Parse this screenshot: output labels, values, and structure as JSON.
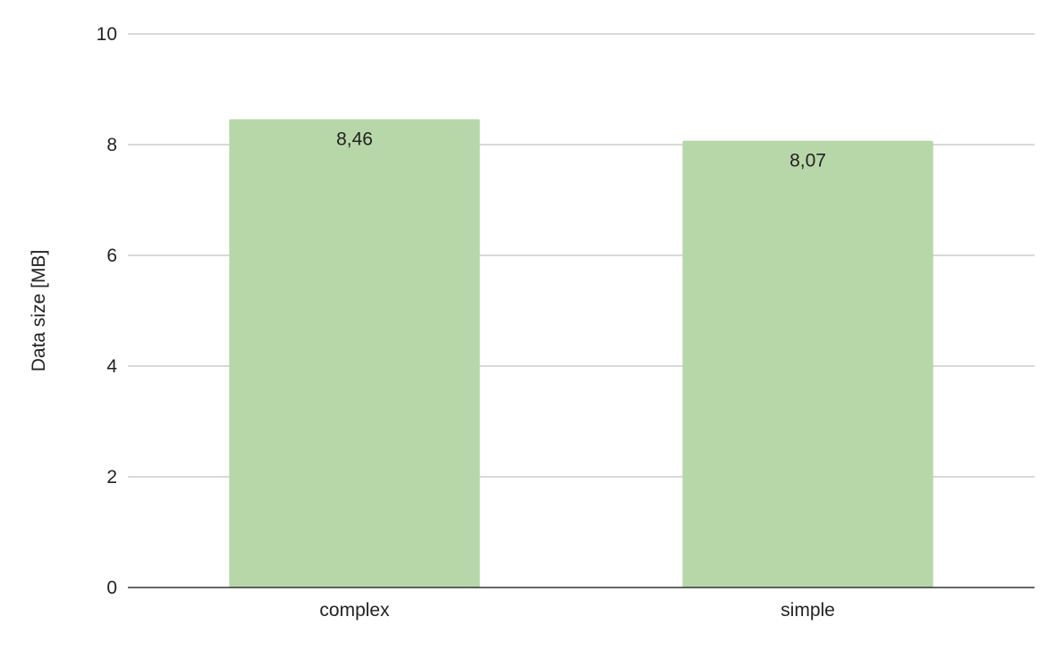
{
  "chart_data": {
    "type": "bar",
    "title": "",
    "xlabel": "",
    "ylabel": "Data size [MB]",
    "categories": [
      "complex",
      "simple"
    ],
    "values": [
      8.46,
      8.07
    ],
    "value_labels": [
      "8,46",
      "8,07"
    ],
    "ylim": [
      0,
      10
    ],
    "yticks": [
      0,
      2,
      4,
      6,
      8,
      10
    ],
    "grid": true,
    "legend": "none",
    "bar_color": "#b7d7a8",
    "gridline_color": "#cccccc",
    "axis_color": "#333333"
  }
}
